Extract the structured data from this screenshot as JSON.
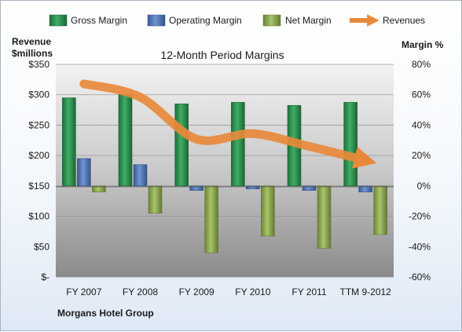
{
  "chart_data": {
    "type": "bar",
    "title": "12-Month Period Margins",
    "company": "Morgans Hotel Group",
    "left_axis_label": [
      "Revenue",
      "$millions"
    ],
    "right_axis_label": "Margin %",
    "categories": [
      "FY 2007",
      "FY 2008",
      "FY 2009",
      "FY 2010",
      "FY 2011",
      "TTM 9-2012"
    ],
    "left_ticks": [
      "$-",
      "$50",
      "$100",
      "$150",
      "$200",
      "$250",
      "$300",
      "$350"
    ],
    "right_ticks": [
      "-60%",
      "-40%",
      "-20%",
      "0%",
      "20%",
      "40%",
      "60%",
      "80%"
    ],
    "left_ylim": [
      0,
      350
    ],
    "right_ylim": [
      -60,
      80
    ],
    "grid": true,
    "legend_position": "top",
    "series": [
      {
        "name": "Gross Margin",
        "kind": "bar",
        "axis": "right",
        "color": "#2e8b4e",
        "values": [
          58,
          60,
          54,
          55,
          53,
          55
        ]
      },
      {
        "name": "Operating Margin",
        "kind": "bar",
        "axis": "right",
        "color": "#4f73b8",
        "values": [
          18,
          14,
          -3,
          -2,
          -3,
          -4
        ]
      },
      {
        "name": "Net Margin",
        "kind": "bar",
        "axis": "right",
        "color": "#8faa4f",
        "values": [
          -4,
          -18,
          -44,
          -33,
          -41,
          -32
        ]
      },
      {
        "name": "Revenues",
        "kind": "line",
        "axis": "left",
        "color": "#e8893a",
        "values": [
          318,
          296,
          227,
          236,
          215,
          192
        ]
      }
    ]
  }
}
